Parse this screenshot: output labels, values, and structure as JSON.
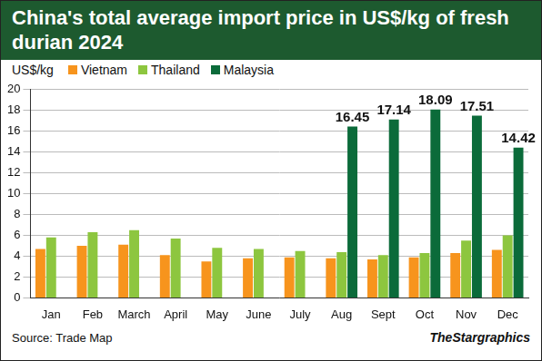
{
  "chart_data": {
    "type": "bar",
    "title": "China's total average import price in US$/kg of fresh durian 2024",
    "y_label": "US$/kg",
    "source": "Source: Trade Map",
    "credit": "TheStargraphics",
    "categories": [
      "Jan",
      "Feb",
      "March",
      "April",
      "May",
      "June",
      "July",
      "Aug",
      "Sept",
      "Oct",
      "Nov",
      "Dec"
    ],
    "series": [
      {
        "name": "Vietnam",
        "color": "#f7941d",
        "values": [
          4.7,
          5.0,
          5.1,
          4.1,
          3.5,
          3.8,
          3.9,
          3.8,
          3.7,
          3.9,
          4.3,
          4.6
        ]
      },
      {
        "name": "Thailand",
        "color": "#8dc63f",
        "values": [
          5.8,
          6.3,
          6.5,
          5.7,
          4.8,
          4.7,
          4.5,
          4.4,
          4.1,
          4.3,
          5.5,
          6.0
        ]
      },
      {
        "name": "Malaysia",
        "color": "#0b6b3a",
        "data_labels": true,
        "values": [
          null,
          null,
          null,
          null,
          null,
          null,
          null,
          16.45,
          17.14,
          18.09,
          17.51,
          14.42
        ]
      }
    ],
    "ylim": [
      0,
      20
    ],
    "yticks": [
      0,
      2,
      4,
      6,
      8,
      10,
      12,
      14,
      16,
      18,
      20
    ],
    "grid": true,
    "legend": "top left"
  }
}
